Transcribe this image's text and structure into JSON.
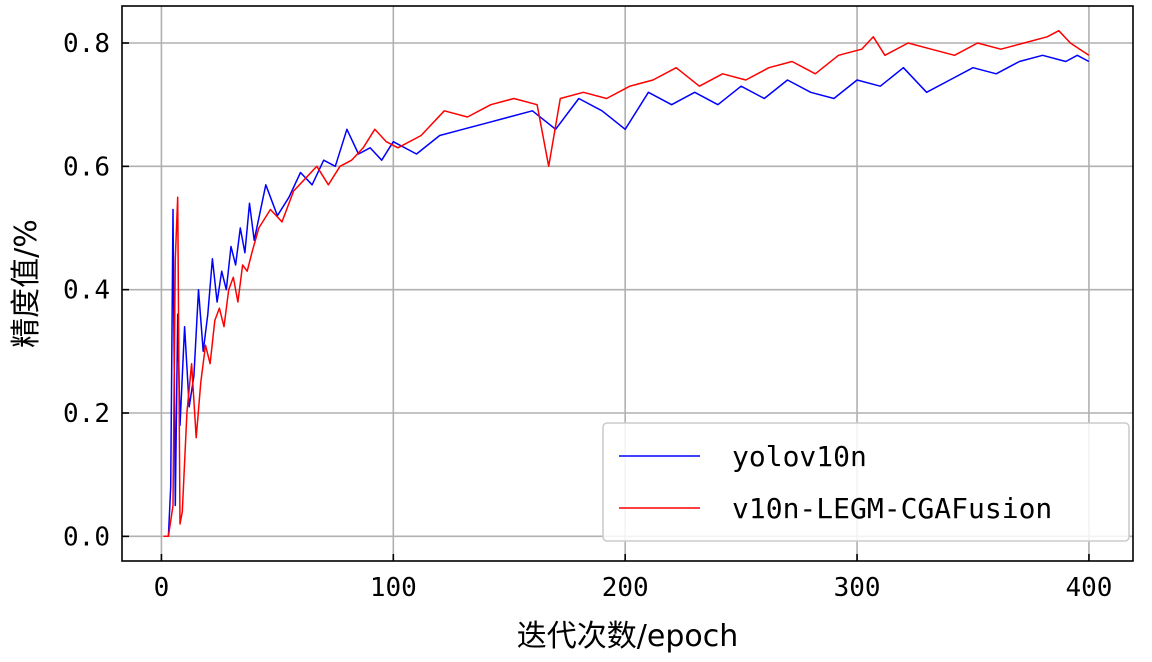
{
  "chart_data": {
    "type": "line",
    "xlabel": "迭代次数/epoch",
    "ylabel": "精度值/%",
    "xlim": [
      -17,
      419
    ],
    "ylim": [
      -0.04,
      0.86
    ],
    "xticks": [
      0,
      100,
      200,
      300,
      400
    ],
    "yticks": [
      0.0,
      0.2,
      0.4,
      0.6,
      0.8
    ],
    "xtick_labels": [
      "0",
      "100",
      "200",
      "300",
      "400"
    ],
    "ytick_labels": [
      "0.0",
      "0.2",
      "0.4",
      "0.6",
      "0.8"
    ],
    "grid": true,
    "legend_position": "lower-right",
    "series": [
      {
        "name": "yolov10n",
        "color": "#0000ff",
        "x": [
          1,
          3,
          4,
          5,
          6,
          7,
          8,
          10,
          12,
          14,
          16,
          18,
          20,
          22,
          24,
          26,
          28,
          30,
          32,
          34,
          36,
          38,
          40,
          45,
          50,
          55,
          60,
          65,
          70,
          75,
          80,
          85,
          90,
          95,
          100,
          110,
          120,
          130,
          140,
          150,
          160,
          170,
          180,
          190,
          200,
          210,
          220,
          230,
          240,
          250,
          260,
          270,
          280,
          290,
          300,
          310,
          320,
          330,
          340,
          350,
          360,
          370,
          380,
          390,
          395,
          400
        ],
        "y": [
          0.0,
          0.0,
          0.08,
          0.53,
          0.05,
          0.36,
          0.18,
          0.34,
          0.21,
          0.26,
          0.4,
          0.3,
          0.36,
          0.45,
          0.38,
          0.43,
          0.4,
          0.47,
          0.44,
          0.5,
          0.46,
          0.54,
          0.48,
          0.57,
          0.52,
          0.55,
          0.59,
          0.57,
          0.61,
          0.6,
          0.66,
          0.62,
          0.63,
          0.61,
          0.64,
          0.62,
          0.65,
          0.66,
          0.67,
          0.68,
          0.69,
          0.66,
          0.71,
          0.69,
          0.66,
          0.72,
          0.7,
          0.72,
          0.7,
          0.73,
          0.71,
          0.74,
          0.72,
          0.71,
          0.74,
          0.73,
          0.76,
          0.72,
          0.74,
          0.76,
          0.75,
          0.77,
          0.78,
          0.77,
          0.78,
          0.77
        ]
      },
      {
        "name": "v10n-LEGM-CGAFusion",
        "color": "#ff0000",
        "x": [
          1,
          3,
          5,
          6,
          7,
          8,
          9,
          11,
          13,
          15,
          17,
          19,
          21,
          23,
          25,
          27,
          29,
          31,
          33,
          35,
          37,
          39,
          42,
          47,
          52,
          57,
          62,
          67,
          72,
          77,
          82,
          87,
          92,
          97,
          102,
          112,
          122,
          132,
          142,
          152,
          162,
          167,
          172,
          182,
          192,
          202,
          212,
          222,
          232,
          242,
          252,
          262,
          272,
          282,
          292,
          302,
          307,
          312,
          322,
          332,
          342,
          352,
          362,
          372,
          382,
          387,
          392,
          396,
          400
        ],
        "y": [
          0.0,
          0.0,
          0.05,
          0.45,
          0.55,
          0.02,
          0.04,
          0.2,
          0.28,
          0.16,
          0.25,
          0.31,
          0.28,
          0.35,
          0.37,
          0.34,
          0.4,
          0.42,
          0.38,
          0.44,
          0.43,
          0.46,
          0.5,
          0.53,
          0.51,
          0.56,
          0.58,
          0.6,
          0.57,
          0.6,
          0.61,
          0.63,
          0.66,
          0.64,
          0.63,
          0.65,
          0.69,
          0.68,
          0.7,
          0.71,
          0.7,
          0.6,
          0.71,
          0.72,
          0.71,
          0.73,
          0.74,
          0.76,
          0.73,
          0.75,
          0.74,
          0.76,
          0.77,
          0.75,
          0.78,
          0.79,
          0.81,
          0.78,
          0.8,
          0.79,
          0.78,
          0.8,
          0.79,
          0.8,
          0.81,
          0.82,
          0.8,
          0.79,
          0.78
        ]
      }
    ]
  }
}
